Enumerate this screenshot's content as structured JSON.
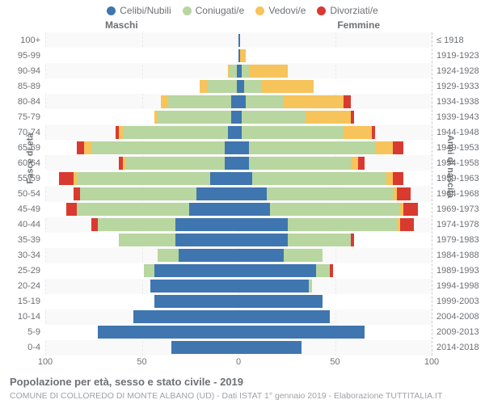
{
  "legend": {
    "items": [
      {
        "label": "Celibi/Nubili",
        "color": "#3f76b0"
      },
      {
        "label": "Coniugati/e",
        "color": "#b8d6a0"
      },
      {
        "label": "Vedovi/e",
        "color": "#f7c35b"
      },
      {
        "label": "Divorziati/e",
        "color": "#d93a2f"
      }
    ]
  },
  "headers": {
    "male": "Maschi",
    "female": "Femmine"
  },
  "axis": {
    "left_label": "Fasce di età",
    "right_label": "Anni di nascita",
    "x_ticks": [
      {
        "pos": 0,
        "label": "100"
      },
      {
        "pos": 25,
        "label": "50"
      },
      {
        "pos": 50,
        "label": "0"
      },
      {
        "pos": 75,
        "label": "50"
      },
      {
        "pos": 100,
        "label": "100"
      }
    ],
    "max": 110
  },
  "colors": {
    "celibi": "#3f76b0",
    "coniugati": "#b8d6a0",
    "vedovi": "#f7c35b",
    "divorziati": "#d93a2f",
    "grid": "#cccccc",
    "row_alt": "#ffffff",
    "row_band": "#f6f6f6"
  },
  "caption": "Popolazione per età, sesso e stato civile - 2019",
  "subcaption": "COMUNE DI COLLOREDO DI MONTE ALBANO (UD) - Dati ISTAT 1° gennaio 2019 - Elaborazione TUTTITALIA.IT",
  "rows": [
    {
      "age": "100+",
      "birth": "≤ 1918",
      "m": [
        0,
        0,
        0,
        0
      ],
      "f": [
        1,
        0,
        0,
        0
      ]
    },
    {
      "age": "95-99",
      "birth": "1919-1923",
      "m": [
        0,
        0,
        0,
        0
      ],
      "f": [
        1,
        0,
        3,
        0
      ]
    },
    {
      "age": "90-94",
      "birth": "1924-1928",
      "m": [
        1,
        4,
        1,
        0
      ],
      "f": [
        2,
        4,
        22,
        0
      ]
    },
    {
      "age": "85-89",
      "birth": "1929-1933",
      "m": [
        1,
        17,
        4,
        0
      ],
      "f": [
        3,
        10,
        30,
        0
      ]
    },
    {
      "age": "80-84",
      "birth": "1934-1938",
      "m": [
        4,
        36,
        4,
        0
      ],
      "f": [
        4,
        22,
        34,
        4
      ]
    },
    {
      "age": "75-79",
      "birth": "1939-1943",
      "m": [
        4,
        42,
        2,
        0
      ],
      "f": [
        2,
        36,
        26,
        2
      ]
    },
    {
      "age": "70-74",
      "birth": "1944-1948",
      "m": [
        6,
        60,
        2,
        2
      ],
      "f": [
        2,
        58,
        16,
        2
      ]
    },
    {
      "age": "65-69",
      "birth": "1949-1953",
      "m": [
        8,
        76,
        4,
        4
      ],
      "f": [
        6,
        72,
        10,
        6
      ]
    },
    {
      "age": "60-64",
      "birth": "1954-1958",
      "m": [
        8,
        56,
        2,
        2
      ],
      "f": [
        6,
        58,
        4,
        4
      ]
    },
    {
      "age": "55-59",
      "birth": "1959-1963",
      "m": [
        16,
        76,
        2,
        8
      ],
      "f": [
        8,
        76,
        4,
        6
      ]
    },
    {
      "age": "50-54",
      "birth": "1964-1968",
      "m": [
        24,
        66,
        0,
        4
      ],
      "f": [
        16,
        72,
        2,
        8
      ]
    },
    {
      "age": "45-49",
      "birth": "1969-1973",
      "m": [
        28,
        64,
        0,
        6
      ],
      "f": [
        18,
        74,
        2,
        8
      ]
    },
    {
      "age": "40-44",
      "birth": "1974-1978",
      "m": [
        36,
        44,
        0,
        4
      ],
      "f": [
        28,
        62,
        2,
        8
      ]
    },
    {
      "age": "35-39",
      "birth": "1979-1983",
      "m": [
        36,
        32,
        0,
        0
      ],
      "f": [
        28,
        36,
        0,
        2
      ]
    },
    {
      "age": "30-34",
      "birth": "1984-1988",
      "m": [
        34,
        12,
        0,
        0
      ],
      "f": [
        26,
        22,
        0,
        0
      ]
    },
    {
      "age": "25-29",
      "birth": "1989-1993",
      "m": [
        48,
        6,
        0,
        0
      ],
      "f": [
        44,
        8,
        0,
        2
      ]
    },
    {
      "age": "20-24",
      "birth": "1994-1998",
      "m": [
        50,
        0,
        0,
        0
      ],
      "f": [
        40,
        2,
        0,
        0
      ]
    },
    {
      "age": "15-19",
      "birth": "1999-2003",
      "m": [
        48,
        0,
        0,
        0
      ],
      "f": [
        48,
        0,
        0,
        0
      ]
    },
    {
      "age": "10-14",
      "birth": "2004-2008",
      "m": [
        60,
        0,
        0,
        0
      ],
      "f": [
        52,
        0,
        0,
        0
      ]
    },
    {
      "age": "5-9",
      "birth": "2009-2013",
      "m": [
        80,
        0,
        0,
        0
      ],
      "f": [
        72,
        0,
        0,
        0
      ]
    },
    {
      "age": "0-4",
      "birth": "2014-2018",
      "m": [
        38,
        0,
        0,
        0
      ],
      "f": [
        36,
        0,
        0,
        0
      ]
    }
  ]
}
